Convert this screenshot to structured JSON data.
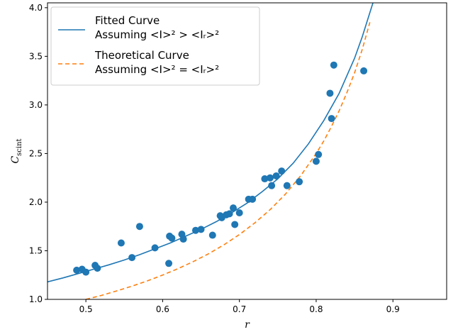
{
  "chart_data": {
    "type": "scatter",
    "xlabel": "r",
    "ylabel": "C_scint",
    "xlim": [
      0.45,
      0.97
    ],
    "ylim": [
      1.0,
      4.05
    ],
    "x_ticks": [
      "0.5",
      "0.6",
      "0.7",
      "0.8",
      "0.9"
    ],
    "y_ticks": [
      "1.0",
      "1.5",
      "2.0",
      "2.5",
      "3.0",
      "3.5",
      "4.0"
    ],
    "grid": false,
    "legend_position": "top-left",
    "colors": {
      "fitted": "#1f77b4",
      "theoretical": "#ff7f0e",
      "points": "#1f77b4"
    },
    "series": [
      {
        "name": "Fitted Curve",
        "name_line2": "Assuming <I>² > <Iᵣ>²",
        "kind": "line",
        "style": "solid",
        "x": [
          0.45,
          0.47,
          0.49,
          0.51,
          0.53,
          0.55,
          0.57,
          0.59,
          0.61,
          0.63,
          0.65,
          0.67,
          0.69,
          0.71,
          0.73,
          0.75,
          0.77,
          0.79,
          0.81,
          0.83,
          0.85,
          0.86,
          0.87,
          0.88,
          0.89
        ],
        "y": [
          1.18,
          1.22,
          1.265,
          1.31,
          1.355,
          1.405,
          1.46,
          1.52,
          1.58,
          1.65,
          1.72,
          1.8,
          1.89,
          1.99,
          2.11,
          2.24,
          2.4,
          2.6,
          2.84,
          3.12,
          3.48,
          3.7,
          3.95,
          4.2,
          4.5
        ]
      },
      {
        "name": "Theoretical Curve",
        "name_line2": "Assuming <I>² = <Iᵣ>²",
        "kind": "line",
        "style": "dashed",
        "x": [
          0.5,
          0.52,
          0.54,
          0.56,
          0.58,
          0.6,
          0.62,
          0.64,
          0.66,
          0.68,
          0.7,
          0.72,
          0.74,
          0.76,
          0.78,
          0.8,
          0.81,
          0.82,
          0.83,
          0.84,
          0.85,
          0.86,
          0.87
        ],
        "y": [
          1.0,
          1.04,
          1.087,
          1.136,
          1.19,
          1.25,
          1.316,
          1.389,
          1.47,
          1.562,
          1.667,
          1.786,
          1.923,
          2.083,
          2.273,
          2.5,
          2.63,
          2.78,
          2.94,
          3.125,
          3.33,
          3.57,
          3.85
        ]
      },
      {
        "name": "",
        "kind": "points",
        "points": [
          [
            0.488,
            1.3
          ],
          [
            0.495,
            1.31
          ],
          [
            0.5,
            1.28
          ],
          [
            0.512,
            1.35
          ],
          [
            0.515,
            1.32
          ],
          [
            0.546,
            1.58
          ],
          [
            0.56,
            1.43
          ],
          [
            0.57,
            1.75
          ],
          [
            0.59,
            1.53
          ],
          [
            0.608,
            1.37
          ],
          [
            0.609,
            1.65
          ],
          [
            0.612,
            1.63
          ],
          [
            0.625,
            1.67
          ],
          [
            0.627,
            1.62
          ],
          [
            0.643,
            1.71
          ],
          [
            0.65,
            1.72
          ],
          [
            0.665,
            1.66
          ],
          [
            0.675,
            1.86
          ],
          [
            0.677,
            1.84
          ],
          [
            0.683,
            1.87
          ],
          [
            0.687,
            1.88
          ],
          [
            0.692,
            1.94
          ],
          [
            0.694,
            1.77
          ],
          [
            0.7,
            1.89
          ],
          [
            0.712,
            2.03
          ],
          [
            0.717,
            2.03
          ],
          [
            0.733,
            2.24
          ],
          [
            0.74,
            2.25
          ],
          [
            0.742,
            2.17
          ],
          [
            0.748,
            2.27
          ],
          [
            0.755,
            2.32
          ],
          [
            0.762,
            2.17
          ],
          [
            0.778,
            2.21
          ],
          [
            0.8,
            2.42
          ],
          [
            0.803,
            2.49
          ],
          [
            0.818,
            3.12
          ],
          [
            0.82,
            2.86
          ],
          [
            0.823,
            3.41
          ],
          [
            0.862,
            3.35
          ]
        ]
      }
    ]
  }
}
